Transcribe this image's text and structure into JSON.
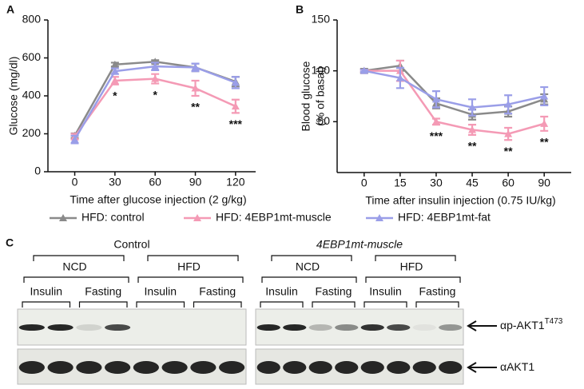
{
  "chart_data": [
    {
      "type": "line",
      "label": "A",
      "ylabel": [
        "Glucose (mg/dl)"
      ],
      "xlabel": "Time after glucose injection (2 g/kg)",
      "x": [
        0,
        30,
        60,
        90,
        120
      ],
      "xlim": [
        -20,
        135
      ],
      "xticks": [
        0,
        30,
        60,
        90,
        120
      ],
      "ylim": [
        0,
        800
      ],
      "yticks": [
        0,
        200,
        400,
        600,
        800
      ],
      "series": [
        {
          "name": "HFD: control",
          "color": "#8a8a8a",
          "values": [
            190,
            565,
            580,
            550,
            475
          ],
          "errors": [
            12,
            10,
            8,
            20,
            25
          ]
        },
        {
          "name": "HFD: 4EBP1mt-muscle",
          "color": "#f49ab5",
          "values": [
            185,
            480,
            490,
            440,
            345
          ],
          "errors": [
            15,
            20,
            25,
            40,
            35
          ]
        },
        {
          "name": "HFD: 4EBP1mt-fat",
          "color": "#9a9ee8",
          "values": [
            170,
            530,
            555,
            550,
            470
          ],
          "errors": [
            20,
            15,
            20,
            20,
            30
          ]
        }
      ],
      "significance": [
        null,
        "*",
        "*",
        "**",
        "***"
      ]
    },
    {
      "type": "line",
      "label": "B",
      "ylabel": [
        "Blood glucose",
        "(% of basal)"
      ],
      "xlabel": "Time after insulin injection (0.75 IU/kg)",
      "categories": [
        "0",
        "15",
        "30",
        "45",
        "60",
        "90"
      ],
      "ylim": [
        0,
        150
      ],
      "yticks": [
        50,
        100,
        150
      ],
      "series": [
        {
          "color": "#8a8a8a",
          "values": [
            100,
            105,
            68,
            57,
            60,
            72
          ],
          "errors": [
            2,
            5,
            5,
            5,
            5,
            5
          ]
        },
        {
          "color": "#f49ab5",
          "values": [
            100,
            100,
            50,
            42,
            38,
            48
          ],
          "errors": [
            1,
            10,
            3,
            5,
            6,
            7
          ]
        },
        {
          "color": "#9a9ee8",
          "values": [
            100,
            93,
            72,
            64,
            67,
            75
          ],
          "errors": [
            1,
            10,
            8,
            8,
            9,
            9
          ]
        }
      ],
      "significance": [
        null,
        null,
        "***",
        "**",
        "**",
        "**"
      ]
    }
  ],
  "blot": {
    "label": "C",
    "panels": [
      {
        "title": "Control",
        "groups": [
          {
            "label": "NCD",
            "lanes": [
              "Insulin",
              "Fasting"
            ]
          },
          {
            "label": "HFD",
            "lanes": [
              "Insulin",
              "Fasting"
            ]
          }
        ]
      },
      {
        "title": "4EBP1mt-muscle",
        "groups": [
          {
            "label": "NCD",
            "lanes": [
              "Insulin",
              "Fasting"
            ]
          },
          {
            "label": "HFD",
            "lanes": [
              "Insulin",
              "Fasting"
            ]
          }
        ]
      }
    ],
    "rows": [
      {
        "label": "αp-AKT1",
        "superscript": "T473"
      },
      {
        "label": "αAKT1"
      }
    ]
  }
}
